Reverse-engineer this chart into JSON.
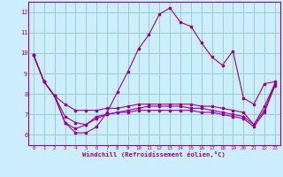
{
  "xlabel": "Windchill (Refroidissement éolien,°C)",
  "xlim": [
    -0.5,
    23.5
  ],
  "ylim": [
    5.5,
    12.5
  ],
  "yticks": [
    6,
    7,
    8,
    9,
    10,
    11,
    12
  ],
  "xticks": [
    0,
    1,
    2,
    3,
    4,
    5,
    6,
    7,
    8,
    9,
    10,
    11,
    12,
    13,
    14,
    15,
    16,
    17,
    18,
    19,
    20,
    21,
    22,
    23
  ],
  "bg_color": "#cceeff",
  "grid_color": "#99cccc",
  "line_color": "#990099",
  "line1": [
    9.9,
    8.6,
    7.9,
    6.6,
    6.1,
    6.1,
    6.4,
    7.1,
    8.1,
    9.1,
    10.2,
    10.9,
    11.9,
    12.2,
    11.5,
    11.3,
    10.5,
    9.8,
    9.4,
    10.1,
    7.8,
    7.5,
    8.5,
    8.6
  ],
  "line2": [
    9.9,
    8.6,
    7.9,
    7.5,
    7.2,
    7.2,
    7.2,
    7.3,
    7.3,
    7.4,
    7.5,
    7.5,
    7.5,
    7.5,
    7.5,
    7.5,
    7.4,
    7.4,
    7.3,
    7.2,
    7.1,
    6.5,
    7.4,
    8.5
  ],
  "line3": [
    9.9,
    8.6,
    7.9,
    6.9,
    6.6,
    6.5,
    6.8,
    7.0,
    7.1,
    7.2,
    7.3,
    7.4,
    7.4,
    7.4,
    7.4,
    7.3,
    7.3,
    7.2,
    7.1,
    7.0,
    6.9,
    6.5,
    7.2,
    8.5
  ],
  "line4": [
    9.9,
    8.6,
    7.9,
    6.6,
    6.3,
    6.5,
    6.9,
    7.0,
    7.1,
    7.1,
    7.2,
    7.2,
    7.2,
    7.2,
    7.2,
    7.2,
    7.1,
    7.1,
    7.0,
    6.9,
    6.8,
    6.4,
    7.1,
    8.4
  ]
}
